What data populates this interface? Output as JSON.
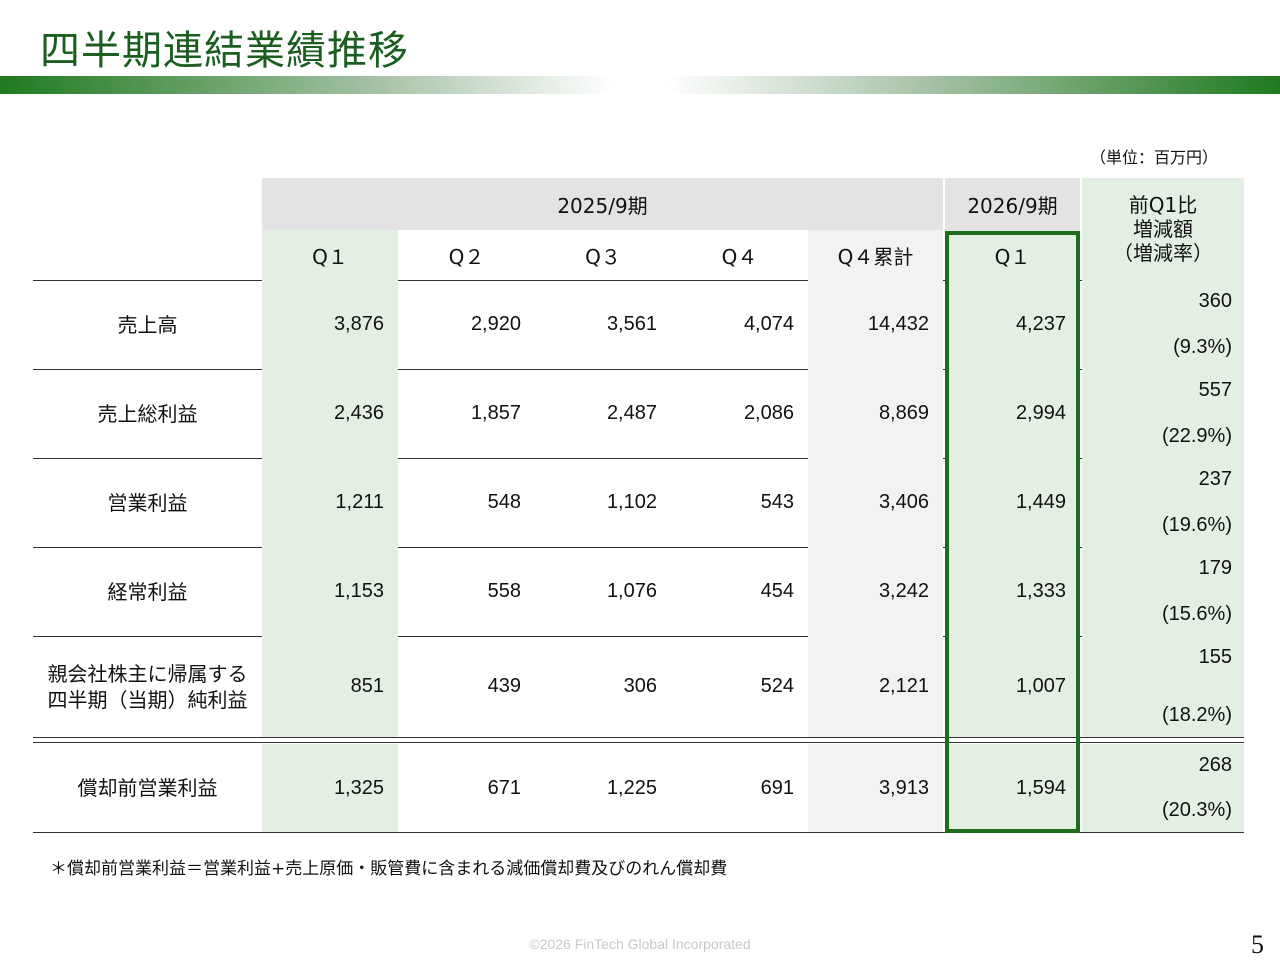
{
  "title": "四半期連結業績推移",
  "unit_label": "（単位：百万円）",
  "header": {
    "fy2025": "2025/9期",
    "fy2026": "2026/9期",
    "diff_line1": "前Q1比",
    "diff_line2": "増減額",
    "diff_line3": "（増減率）",
    "quarters": [
      "Q１",
      "Q２",
      "Q３",
      "Q４",
      "Q４累計"
    ],
    "q1_2026": "Q１"
  },
  "rows": [
    {
      "label": "売上高",
      "label2": "",
      "values": [
        "3,876",
        "2,920",
        "3,561",
        "4,074",
        "14,432"
      ],
      "q1_2026": "4,237",
      "diff": "360",
      "rate": "(9.3%)"
    },
    {
      "label": "売上総利益",
      "label2": "",
      "values": [
        "2,436",
        "1,857",
        "2,487",
        "2,086",
        "8,869"
      ],
      "q1_2026": "2,994",
      "diff": "557",
      "rate": "(22.9%)"
    },
    {
      "label": "営業利益",
      "label2": "",
      "values": [
        "1,211",
        "548",
        "1,102",
        "543",
        "3,406"
      ],
      "q1_2026": "1,449",
      "diff": "237",
      "rate": "(19.6%)"
    },
    {
      "label": "経常利益",
      "label2": "",
      "values": [
        "1,153",
        "558",
        "1,076",
        "454",
        "3,242"
      ],
      "q1_2026": "1,333",
      "diff": "179",
      "rate": "(15.6%)"
    },
    {
      "label": "親会社株主に帰属する",
      "label2": "四半期（当期）純利益",
      "values": [
        "851",
        "439",
        "306",
        "524",
        "2,121"
      ],
      "q1_2026": "1,007",
      "diff": "155",
      "rate": "(18.2%)"
    },
    {
      "label": "償却前営業利益",
      "label2": "",
      "values": [
        "1,325",
        "671",
        "1,225",
        "691",
        "3,913"
      ],
      "q1_2026": "1,594",
      "diff": "268",
      "rate": "(20.3%)"
    }
  ],
  "footnote": "＊償却前営業利益＝営業利益+売上原価・販管費に含まれる減価償却費及びのれん償却費",
  "copyright": "©2026 FinTech Global Incorporated",
  "page_number": "5",
  "colors": {
    "accent": "#1b6e1b",
    "q1_fill": "#e4efe4",
    "header_grey": "#e3e3e3"
  }
}
